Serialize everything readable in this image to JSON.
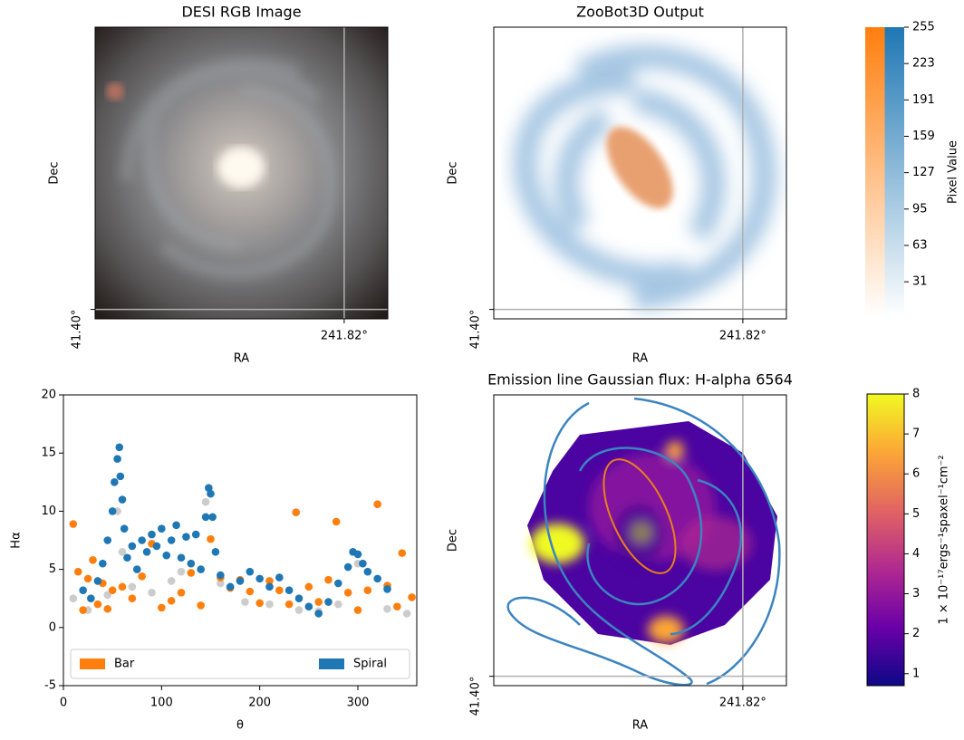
{
  "chart_data": [
    {
      "type": "image",
      "title": "DESI RGB Image",
      "xlabel": "RA",
      "ylabel": "Dec",
      "xlim": [
        241.84,
        241.8165
      ],
      "ylim": [
        41.3995,
        41.415
      ],
      "xticks": [
        {
          "value": 241.82,
          "label": "241.82°"
        }
      ],
      "yticks": [
        {
          "value": 41.4,
          "label": "41.40°"
        }
      ],
      "grid": true
    },
    {
      "type": "image",
      "title": "ZooBot3D Output",
      "xlabel": "RA",
      "ylabel": "Dec",
      "xlim": [
        241.84,
        241.8165
      ],
      "ylim": [
        41.3995,
        41.415
      ],
      "xticks": [
        {
          "value": 241.82,
          "label": "241.82°"
        }
      ],
      "yticks": [
        {
          "value": 41.4,
          "label": "41.40°"
        }
      ],
      "grid": true
    },
    {
      "type": "colorbar",
      "ylabel": "Pixel Value",
      "colors": [
        "#ff7f0e",
        "#1f77b4"
      ],
      "ylim": [
        0,
        255
      ],
      "yticks": [
        31,
        63,
        95,
        127,
        159,
        191,
        223,
        255
      ]
    },
    {
      "type": "scatter",
      "xlabel": "θ",
      "ylabel": "Hα",
      "xlim": [
        0,
        360
      ],
      "ylim": [
        -5,
        20
      ],
      "xticks": [
        0,
        100,
        200,
        300
      ],
      "yticks": [
        -5,
        0,
        5,
        10,
        15,
        20
      ],
      "legend": "lower",
      "series": [
        {
          "color": "#cccccc",
          "x": [
            10,
            25,
            45,
            55,
            60,
            70,
            90,
            110,
            120,
            130,
            145,
            160,
            185,
            210,
            240,
            260,
            280,
            300,
            330,
            350
          ],
          "values": [
            2.5,
            1.5,
            2.8,
            10,
            6.5,
            3.5,
            3,
            4,
            4.8,
            5.5,
            10.8,
            3.8,
            2.2,
            2,
            1.5,
            1.4,
            2,
            5.5,
            1.6,
            1.2
          ]
        },
        {
          "name": "Bar",
          "color": "#ff7f0e",
          "x": [
            10,
            15,
            20,
            25,
            30,
            35,
            40,
            45,
            50,
            60,
            70,
            80,
            90,
            100,
            110,
            120,
            130,
            140,
            150,
            160,
            170,
            180,
            190,
            200,
            210,
            220,
            230,
            237,
            250,
            260,
            270,
            278,
            290,
            300,
            310,
            320,
            330,
            340,
            345,
            355
          ],
          "values": [
            8.9,
            4.8,
            1.5,
            4.2,
            5.8,
            2,
            3.8,
            1.6,
            3.2,
            3.5,
            2.5,
            4.4,
            7.2,
            1.7,
            2.3,
            3,
            4.7,
            1.9,
            7.6,
            4.3,
            3.4,
            4.1,
            3.1,
            2.1,
            4,
            3.2,
            2,
            9.9,
            3.5,
            2.2,
            4.1,
            9.1,
            3,
            1.5,
            3.2,
            10.6,
            3.6,
            1.8,
            6.4,
            2.6
          ]
        },
        {
          "name": "Spiral",
          "color": "#1f77b4",
          "x": [
            20,
            28,
            35,
            40,
            45,
            50,
            52,
            55,
            57,
            58,
            60,
            62,
            65,
            70,
            75,
            80,
            85,
            90,
            95,
            100,
            105,
            110,
            115,
            120,
            125,
            130,
            135,
            140,
            145,
            148,
            150,
            152,
            155,
            160,
            170,
            180,
            190,
            200,
            210,
            220,
            230,
            240,
            250,
            260,
            270,
            280,
            290,
            295,
            300,
            305,
            310,
            320,
            330
          ],
          "values": [
            3.2,
            2.5,
            4,
            5.5,
            7.5,
            10,
            12.5,
            14.5,
            15.5,
            13,
            11,
            8.5,
            6,
            7,
            5,
            7.5,
            6.5,
            8,
            7,
            8.5,
            6.2,
            7.5,
            8.8,
            6,
            7.8,
            5.5,
            8,
            5,
            9.5,
            12,
            11.5,
            9.5,
            6.5,
            4.5,
            3.5,
            4,
            4.8,
            4.2,
            3.5,
            4.3,
            3.2,
            2.5,
            1.8,
            1.2,
            2.2,
            3.8,
            5.2,
            6.5,
            6.3,
            5.5,
            4.8,
            4.2,
            3.3
          ]
        }
      ]
    },
    {
      "type": "image",
      "title": "Emission line Gaussian flux: H-alpha 6564",
      "xlabel": "RA",
      "ylabel": "Dec",
      "xlim": [
        241.84,
        241.8165
      ],
      "ylim": [
        41.3995,
        41.415
      ],
      "xticks": [
        {
          "value": 241.82,
          "label": "241.82°"
        }
      ],
      "yticks": [
        {
          "value": 41.4,
          "label": "41.40°"
        }
      ],
      "grid": true
    },
    {
      "type": "colorbar",
      "ylabel": "1 × 10⁻¹⁷ergs⁻¹spaxel⁻¹cm⁻²",
      "colormap": "plasma",
      "ylim": [
        0.7,
        8
      ],
      "yticks": [
        1,
        2,
        3,
        4,
        5,
        6,
        7,
        8
      ]
    }
  ]
}
